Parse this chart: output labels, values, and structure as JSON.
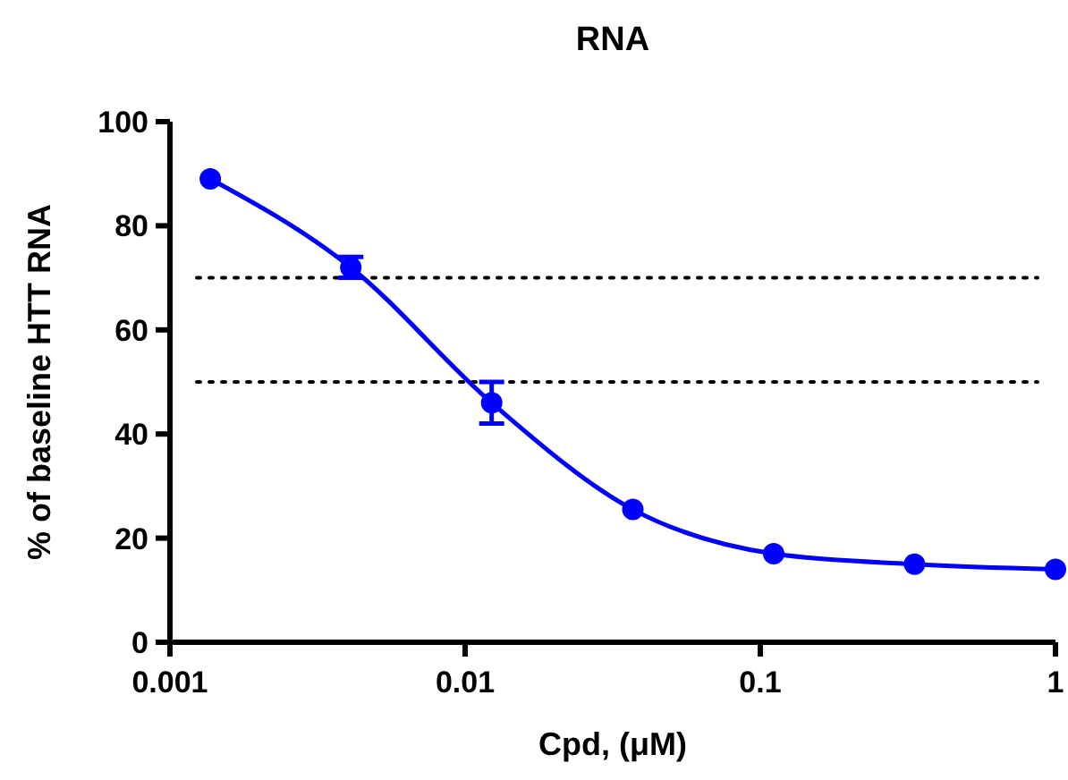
{
  "chart_data": {
    "type": "line",
    "title": "RNA",
    "xlabel": "Cpd, (μM)",
    "ylabel": "% of baseline HTT RNA",
    "log": "x",
    "x": [
      0.00137,
      0.0041,
      0.0123,
      0.037,
      0.111,
      0.333,
      1
    ],
    "series": [
      {
        "color": "#0000ff",
        "values": [
          89,
          72,
          46,
          25.5,
          17,
          15,
          14
        ],
        "errors": [
          null,
          2,
          4,
          null,
          null,
          null,
          null
        ]
      }
    ],
    "xlim": [
      0.001,
      1
    ],
    "xticks": [
      0.001,
      0.01,
      0.1,
      1
    ],
    "ylim": [
      0,
      100
    ],
    "yticks": [
      0,
      20,
      40,
      60,
      80,
      100
    ],
    "ref_lines": [
      {
        "axis": "y",
        "value": 70,
        "line_style": "dotted",
        "color": "#000000"
      },
      {
        "axis": "y",
        "value": 50,
        "line_style": "dotted",
        "color": "#000000"
      }
    ],
    "marker": "circle",
    "line_style": "solid"
  }
}
